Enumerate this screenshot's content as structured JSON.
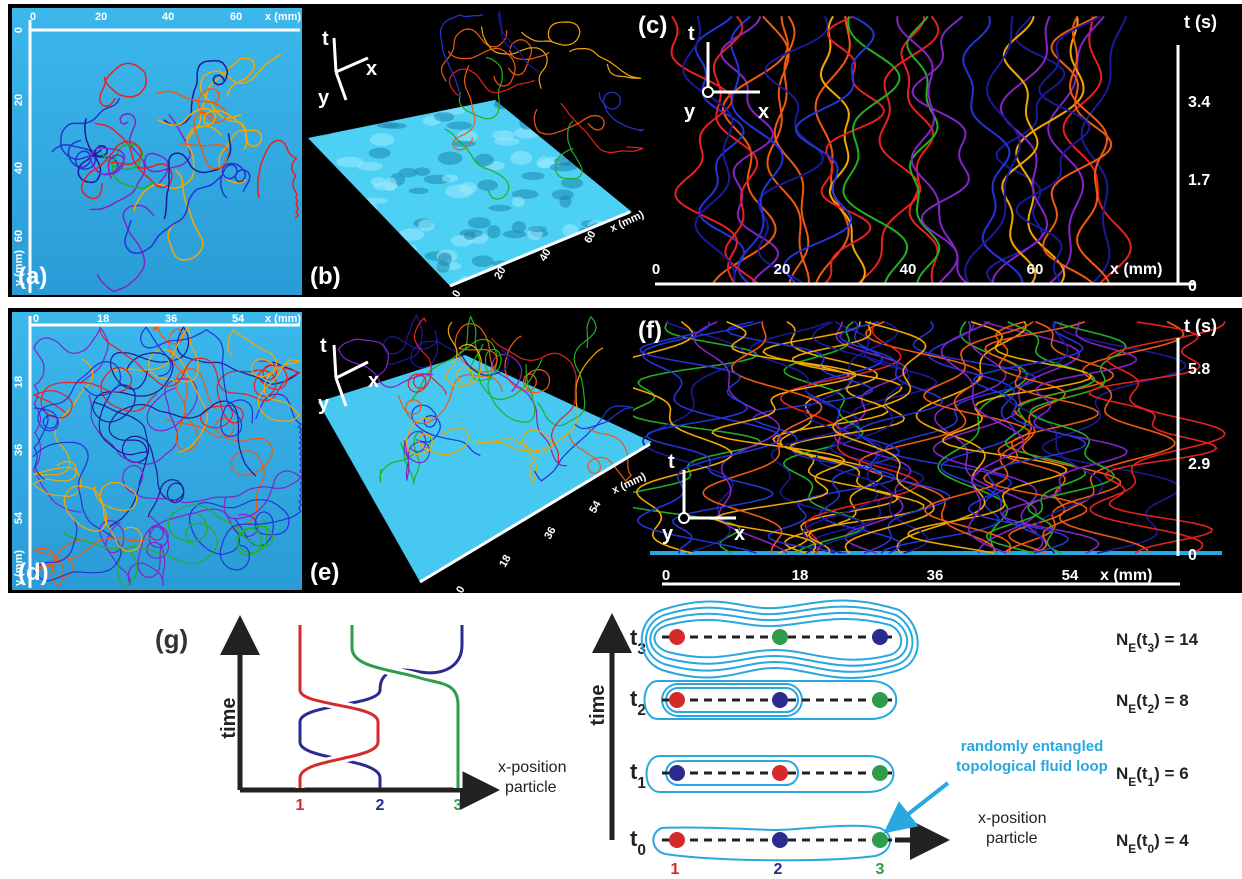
{
  "panels": {
    "a": {
      "label": "(a)",
      "x_ticks": [
        "0",
        "20",
        "40",
        "60"
      ],
      "x_axis": "x (mm)",
      "y_ticks": [
        "0",
        "20",
        "40",
        "60"
      ],
      "y_axis": "y (mm)"
    },
    "b": {
      "label": "(b)",
      "axes": {
        "t": "t",
        "x": "x",
        "y": "y"
      },
      "x_ticks": [
        "0",
        "20",
        "40",
        "60"
      ],
      "x_axis": "x (mm)"
    },
    "c": {
      "label": "(c)",
      "axes": {
        "t": "t",
        "x": "x",
        "y": "y"
      },
      "x_ticks": [
        "0",
        "20",
        "40",
        "60"
      ],
      "x_axis": "x (mm)",
      "t_ticks": [
        "0",
        "1.7",
        "3.4"
      ],
      "t_axis": "t (s)"
    },
    "d": {
      "label": "(d)",
      "x_ticks": [
        "0",
        "18",
        "36",
        "54"
      ],
      "x_axis": "x (mm)",
      "y_ticks": [
        "18",
        "36",
        "54"
      ],
      "y_axis": "y (mm)"
    },
    "e": {
      "label": "(e)",
      "axes": {
        "t": "t",
        "x": "x",
        "y": "y"
      },
      "x_ticks": [
        "0",
        "18",
        "36",
        "54"
      ],
      "x_axis": "x (mm)"
    },
    "f": {
      "label": "(f)",
      "axes": {
        "t": "t",
        "x": "x",
        "y": "y"
      },
      "x_ticks": [
        "0",
        "18",
        "36",
        "54"
      ],
      "x_axis": "x (mm)",
      "t_ticks": [
        "0",
        "2.9",
        "5.8"
      ],
      "t_axis": "t (s)"
    },
    "g": {
      "label": "(g)",
      "left": {
        "y_axis": "time",
        "x_axis": [
          "x-position",
          "particle"
        ],
        "particles": [
          "1",
          "2",
          "3"
        ]
      },
      "right": {
        "y_axis": "time",
        "x_axis": [
          "x-position",
          "particle"
        ],
        "particles": [
          "1",
          "2",
          "3"
        ],
        "times": [
          {
            "parts": [
              {
                "text": "t"
              },
              {
                "text": "0",
                "sub": true
              }
            ]
          },
          {
            "parts": [
              {
                "text": "t"
              },
              {
                "text": "1",
                "sub": true
              }
            ]
          },
          {
            "parts": [
              {
                "text": "t"
              },
              {
                "text": "2",
                "sub": true
              }
            ]
          },
          {
            "parts": [
              {
                "text": "t"
              },
              {
                "text": "3",
                "sub": true
              }
            ]
          }
        ],
        "counts": [
          {
            "parts": [
              {
                "text": "N"
              },
              {
                "text": "E",
                "sub": true
              },
              {
                "text": "(t"
              },
              {
                "text": "0",
                "sub": true
              },
              {
                "text": ") = 4"
              }
            ]
          },
          {
            "parts": [
              {
                "text": "N"
              },
              {
                "text": "E",
                "sub": true
              },
              {
                "text": "(t"
              },
              {
                "text": "1",
                "sub": true
              },
              {
                "text": ") = 6"
              }
            ]
          },
          {
            "parts": [
              {
                "text": "N"
              },
              {
                "text": "E",
                "sub": true
              },
              {
                "text": "(t"
              },
              {
                "text": "2",
                "sub": true
              },
              {
                "text": ") = 8"
              }
            ]
          },
          {
            "parts": [
              {
                "text": "N"
              },
              {
                "text": "E",
                "sub": true
              },
              {
                "text": "(t"
              },
              {
                "text": "3",
                "sub": true
              },
              {
                "text": ") = 14"
              }
            ]
          }
        ],
        "annotation": [
          "randomly entangled",
          "topological fluid loop"
        ]
      }
    }
  }
}
